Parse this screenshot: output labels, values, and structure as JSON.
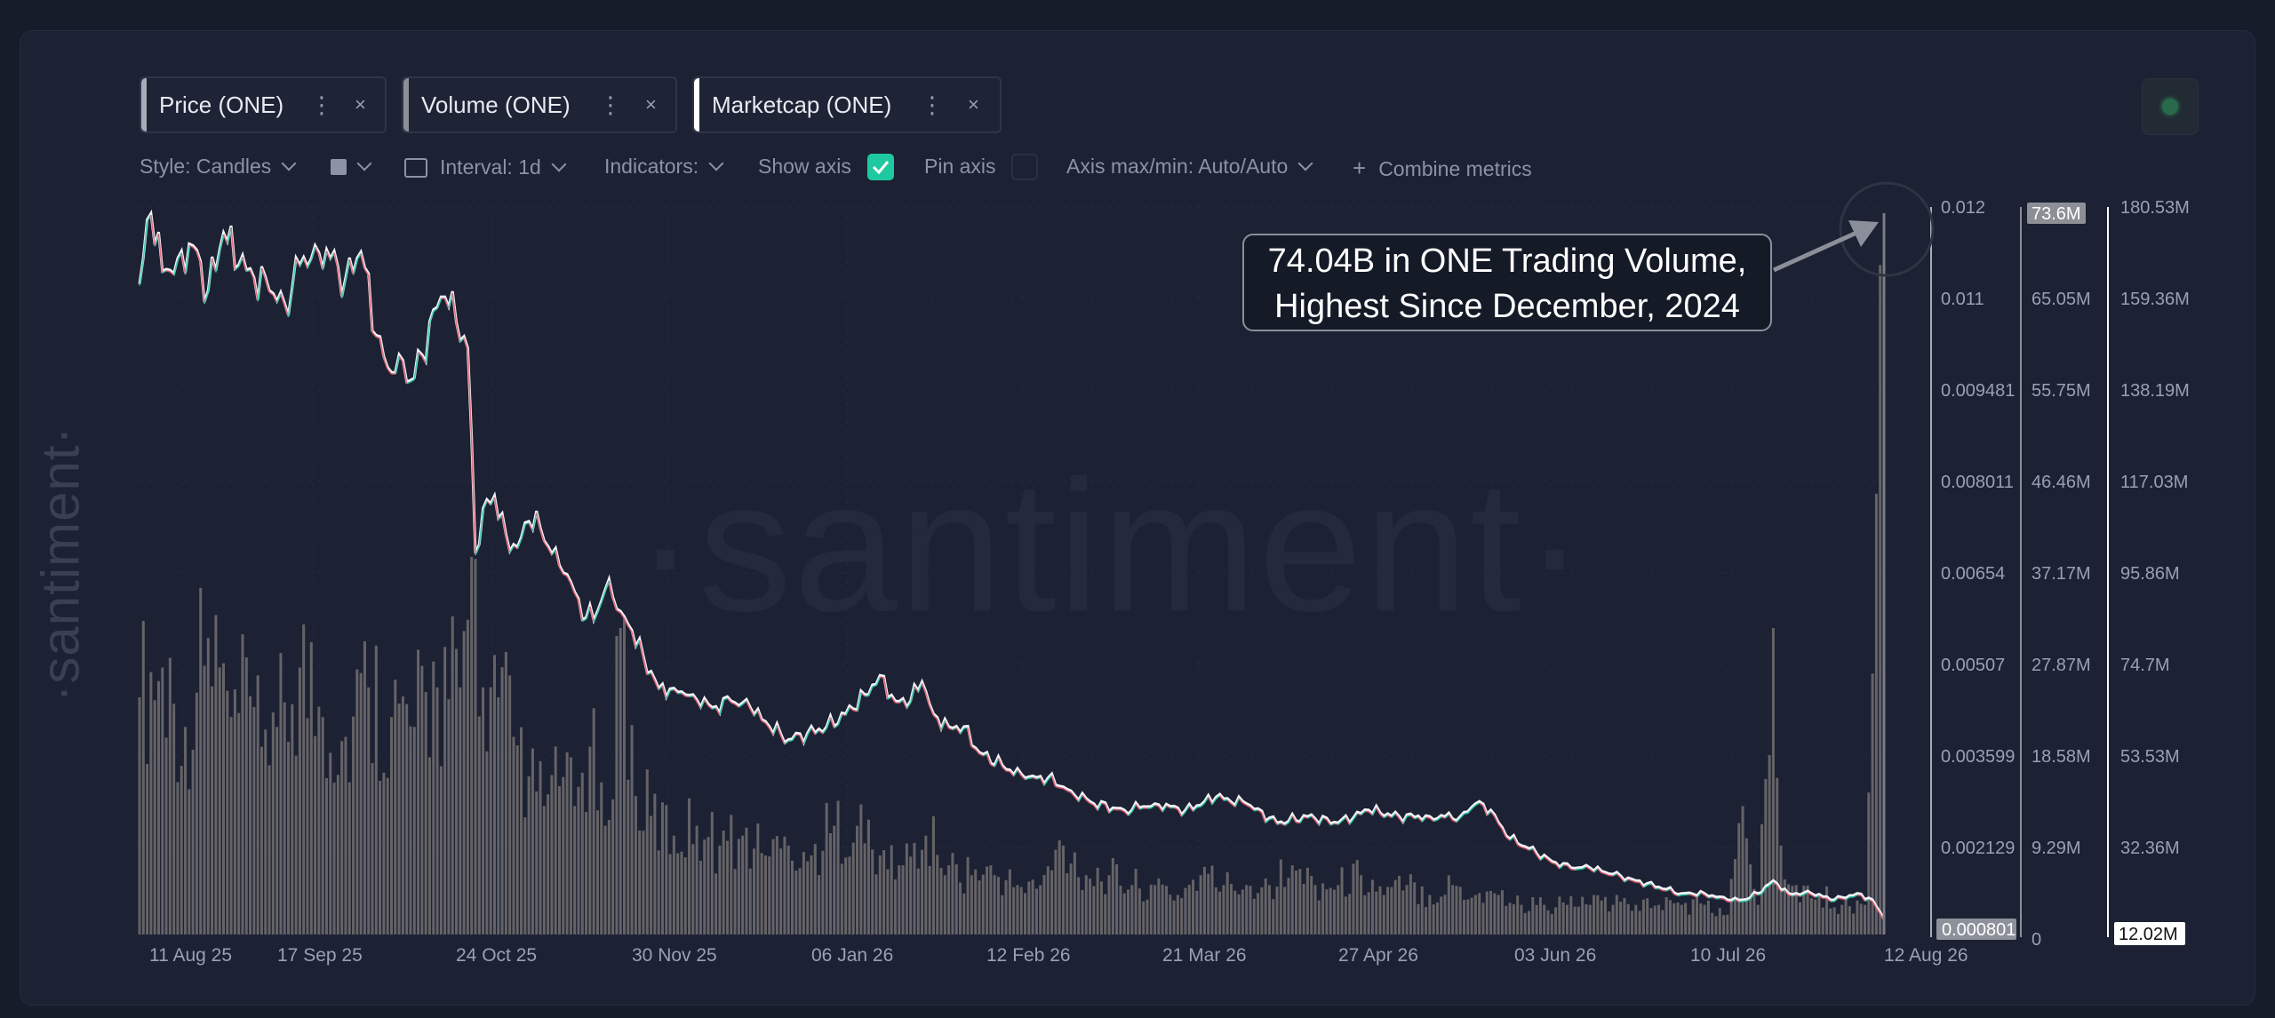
{
  "tabs": [
    {
      "label": "Price (ONE)",
      "color": "#a8acb8"
    },
    {
      "label": "Volume (ONE)",
      "color": "#8d8f97"
    },
    {
      "label": "Marketcap (ONE)",
      "color": "#ffffff"
    }
  ],
  "toolbar": {
    "style": "Style: Candles",
    "interval": "Interval: 1d",
    "indicators": "Indicators:",
    "show_axis": "Show axis",
    "show_axis_checked": true,
    "pin_axis": "Pin axis",
    "pin_axis_checked": false,
    "axis_maxmin": "Axis max/min: Auto/Auto",
    "combine": "Combine metrics"
  },
  "watermark": "·santiment·",
  "annotation": {
    "line1": "74.04B in ONE Trading Volume,",
    "line2": "Highest Since December, 2024"
  },
  "colors": {
    "up": "#26c6a6",
    "down": "#e0566a",
    "volume": "#6e6a6c",
    "accent": "#1ec8a0"
  },
  "chart_data": {
    "type": "line",
    "x_labels": [
      "11 Aug 25",
      "17 Sep 25",
      "24 Oct 25",
      "30 Nov 25",
      "06 Jan 26",
      "12 Feb 26",
      "21 Mar 26",
      "27 Apr 26",
      "03 Jun 26",
      "10 Jul 26",
      "12 Aug 26"
    ],
    "price_axis": {
      "ticks": [
        "0.012",
        "0.011",
        "0.009481",
        "0.008011",
        "0.00654",
        "0.00507",
        "0.003599",
        "0.002129",
        "0.000801"
      ],
      "ylim": [
        0.000659,
        0.012
      ],
      "current": "0.000801"
    },
    "volume_axis": {
      "ticks": [
        "65.05M",
        "55.75M",
        "46.46M",
        "37.17M",
        "27.87M",
        "18.58M",
        "9.29M",
        "0"
      ],
      "max_label": "73.6M"
    },
    "marketcap_axis": {
      "ticks": [
        "180.53M",
        "159.36M",
        "138.19M",
        "117.03M",
        "95.86M",
        "74.7M",
        "53.53M",
        "32.36M"
      ],
      "current": "12.02M"
    },
    "price_series": [
      [
        0,
        0.0108
      ],
      [
        3,
        0.0119
      ],
      [
        6,
        0.011
      ],
      [
        10,
        0.0112
      ],
      [
        14,
        0.0114
      ],
      [
        18,
        0.0107
      ],
      [
        22,
        0.0116
      ],
      [
        26,
        0.0111
      ],
      [
        30,
        0.0109
      ],
      [
        34,
        0.0107
      ],
      [
        38,
        0.0105
      ],
      [
        42,
        0.0111
      ],
      [
        46,
        0.0114
      ],
      [
        50,
        0.0112
      ],
      [
        54,
        0.0109
      ],
      [
        58,
        0.0113
      ],
      [
        62,
        0.01
      ],
      [
        65,
        0.0095
      ],
      [
        68,
        0.0097
      ],
      [
        71,
        0.0093
      ],
      [
        74,
        0.0097
      ],
      [
        77,
        0.0104
      ],
      [
        80,
        0.0106
      ],
      [
        83,
        0.0102
      ],
      [
        86,
        0.0098
      ],
      [
        88,
        0.0066
      ],
      [
        90,
        0.0073
      ],
      [
        93,
        0.0075
      ],
      [
        96,
        0.0069
      ],
      [
        99,
        0.0067
      ],
      [
        102,
        0.0071
      ],
      [
        105,
        0.007
      ],
      [
        108,
        0.0066
      ],
      [
        111,
        0.0063
      ],
      [
        114,
        0.006
      ],
      [
        117,
        0.0056
      ],
      [
        120,
        0.0057
      ],
      [
        123,
        0.0062
      ],
      [
        126,
        0.0057
      ],
      [
        129,
        0.0054
      ],
      [
        132,
        0.005
      ],
      [
        136,
        0.0045
      ],
      [
        140,
        0.0045
      ],
      [
        145,
        0.0044
      ],
      [
        150,
        0.0042
      ],
      [
        155,
        0.0043
      ],
      [
        160,
        0.0042
      ],
      [
        165,
        0.0039
      ],
      [
        170,
        0.0037
      ],
      [
        175,
        0.0038
      ],
      [
        180,
        0.0039
      ],
      [
        185,
        0.0041
      ],
      [
        190,
        0.0044
      ],
      [
        194,
        0.0047
      ],
      [
        198,
        0.0043
      ],
      [
        202,
        0.0043
      ],
      [
        205,
        0.0046
      ],
      [
        208,
        0.0041
      ],
      [
        212,
        0.0039
      ],
      [
        216,
        0.0039
      ],
      [
        220,
        0.0035
      ],
      [
        226,
        0.0033
      ],
      [
        232,
        0.0031
      ],
      [
        238,
        0.0031
      ],
      [
        244,
        0.0029
      ],
      [
        250,
        0.0027
      ],
      [
        258,
        0.0026
      ],
      [
        266,
        0.0027
      ],
      [
        274,
        0.0026
      ],
      [
        282,
        0.0028
      ],
      [
        290,
        0.0027
      ],
      [
        298,
        0.0024
      ],
      [
        306,
        0.0025
      ],
      [
        314,
        0.0024
      ],
      [
        322,
        0.0026
      ],
      [
        330,
        0.0025
      ],
      [
        338,
        0.0025
      ],
      [
        346,
        0.0025
      ],
      [
        350,
        0.0027
      ],
      [
        354,
        0.0026
      ],
      [
        358,
        0.0022
      ],
      [
        364,
        0.002
      ],
      [
        370,
        0.0018
      ],
      [
        375,
        0.0017
      ],
      [
        380,
        0.0017
      ],
      [
        386,
        0.0016
      ],
      [
        392,
        0.0015
      ],
      [
        398,
        0.0014
      ],
      [
        404,
        0.0013
      ],
      [
        410,
        0.0013
      ],
      [
        416,
        0.0012
      ],
      [
        420,
        0.0012
      ],
      [
        424,
        0.0013
      ],
      [
        428,
        0.0015
      ],
      [
        432,
        0.0013
      ],
      [
        438,
        0.0013
      ],
      [
        444,
        0.0012
      ],
      [
        450,
        0.0013
      ],
      [
        454,
        0.0012
      ],
      [
        457,
        0.0009
      ]
    ],
    "volume_series": [
      [
        0,
        24
      ],
      [
        6,
        27
      ],
      [
        12,
        21
      ],
      [
        18,
        30
      ],
      [
        24,
        22
      ],
      [
        30,
        23
      ],
      [
        36,
        21
      ],
      [
        42,
        27
      ],
      [
        48,
        22
      ],
      [
        54,
        20
      ],
      [
        60,
        25
      ],
      [
        66,
        22
      ],
      [
        72,
        21
      ],
      [
        78,
        25
      ],
      [
        84,
        25
      ],
      [
        88,
        38
      ],
      [
        90,
        25
      ],
      [
        94,
        24
      ],
      [
        98,
        20
      ],
      [
        102,
        16
      ],
      [
        106,
        13
      ],
      [
        110,
        15
      ],
      [
        114,
        13
      ],
      [
        118,
        19
      ],
      [
        122,
        11
      ],
      [
        126,
        31
      ],
      [
        130,
        14
      ],
      [
        134,
        12
      ],
      [
        140,
        10
      ],
      [
        146,
        11
      ],
      [
        152,
        9
      ],
      [
        158,
        10
      ],
      [
        164,
        8
      ],
      [
        170,
        9
      ],
      [
        176,
        8
      ],
      [
        182,
        11
      ],
      [
        188,
        11
      ],
      [
        194,
        8
      ],
      [
        200,
        7
      ],
      [
        206,
        10
      ],
      [
        212,
        7
      ],
      [
        218,
        6
      ],
      [
        224,
        6
      ],
      [
        230,
        5
      ],
      [
        236,
        5
      ],
      [
        242,
        9
      ],
      [
        248,
        6
      ],
      [
        254,
        6
      ],
      [
        260,
        5
      ],
      [
        266,
        5
      ],
      [
        272,
        4
      ],
      [
        278,
        6
      ],
      [
        284,
        5
      ],
      [
        290,
        5
      ],
      [
        296,
        5
      ],
      [
        302,
        7
      ],
      [
        308,
        5
      ],
      [
        314,
        5
      ],
      [
        320,
        6
      ],
      [
        326,
        4
      ],
      [
        332,
        5
      ],
      [
        338,
        4
      ],
      [
        344,
        5
      ],
      [
        350,
        4
      ],
      [
        356,
        4
      ],
      [
        362,
        3
      ],
      [
        368,
        3
      ],
      [
        374,
        3
      ],
      [
        380,
        3
      ],
      [
        386,
        3
      ],
      [
        392,
        3
      ],
      [
        398,
        3
      ],
      [
        404,
        3
      ],
      [
        410,
        3
      ],
      [
        416,
        2
      ],
      [
        420,
        13
      ],
      [
        424,
        3
      ],
      [
        428,
        31
      ],
      [
        430,
        9
      ],
      [
        434,
        5
      ],
      [
        440,
        4
      ],
      [
        446,
        3
      ],
      [
        452,
        3
      ],
      [
        457,
        71
      ]
    ]
  }
}
